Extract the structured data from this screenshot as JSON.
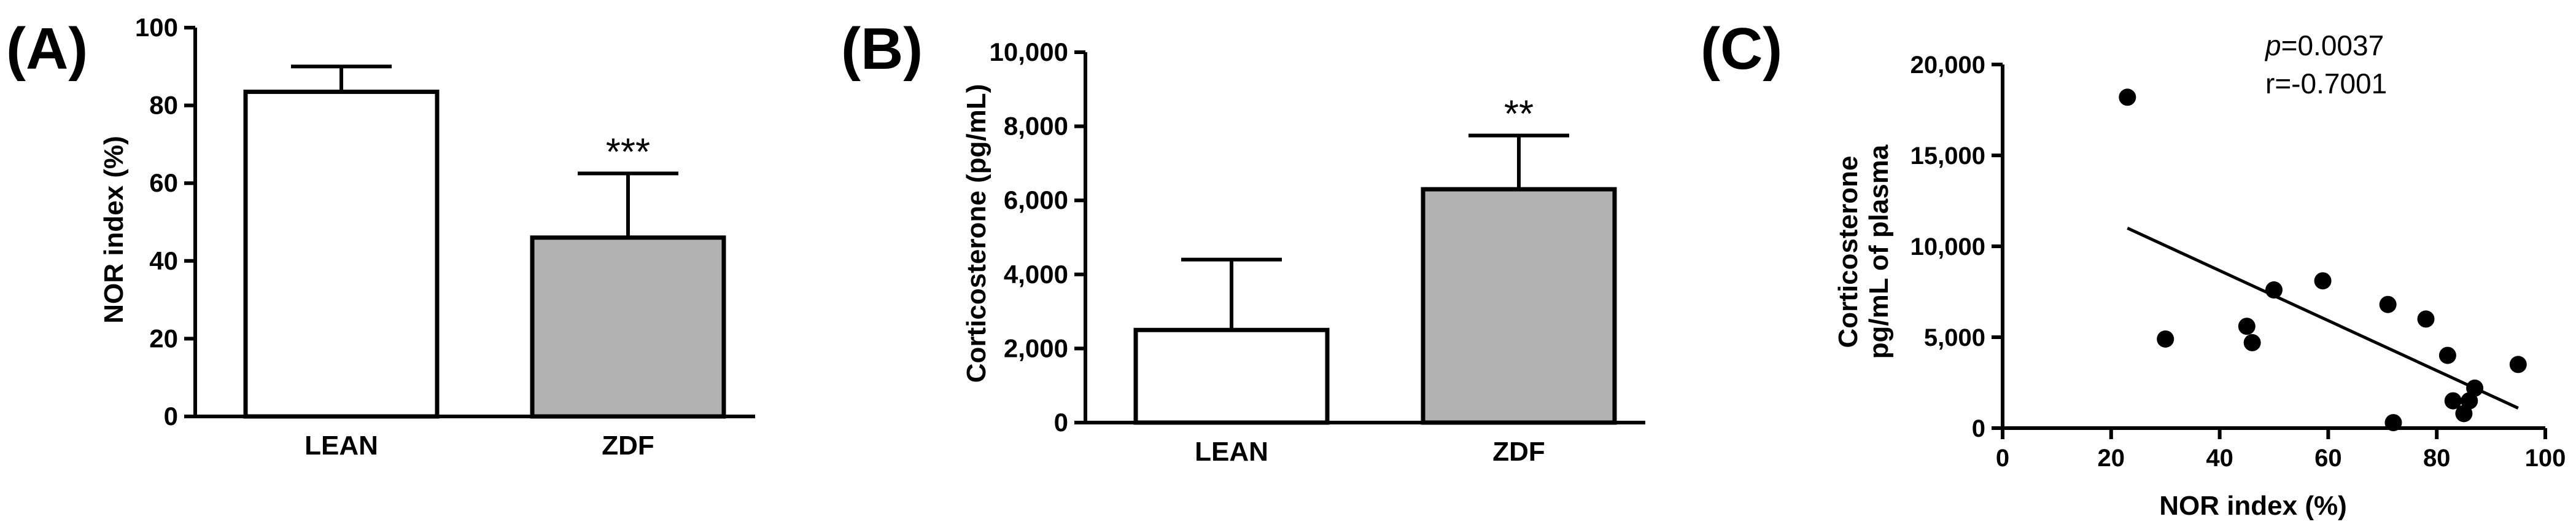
{
  "colors": {
    "axis": "#000000",
    "lean_fill": "#ffffff",
    "zdf_fill": "#b3b3b3",
    "point": "#000000"
  },
  "panels": [
    {
      "label": "(A)"
    },
    {
      "label": "(B)"
    },
    {
      "label": "(C)"
    }
  ],
  "chart_data": [
    {
      "type": "bar",
      "panel": "(A)",
      "categories": [
        "LEAN",
        "ZDF"
      ],
      "values": [
        83.5,
        46
      ],
      "error_upper": [
        90,
        62.5
      ],
      "significance": [
        "",
        "***"
      ],
      "ylabel": "NOR index (%)",
      "xlabel": "",
      "ylim": [
        0,
        100
      ],
      "yticks": [
        0,
        20,
        40,
        60,
        80,
        100
      ],
      "ytick_labels": [
        "0",
        "20",
        "40",
        "60",
        "80",
        "100"
      ]
    },
    {
      "type": "bar",
      "panel": "(B)",
      "categories": [
        "LEAN",
        "ZDF"
      ],
      "values": [
        2500,
        6300
      ],
      "error_upper": [
        4400,
        7750
      ],
      "significance": [
        "",
        "**"
      ],
      "ylabel": "Corticosterone (pg/mL)",
      "xlabel": "",
      "ylim": [
        0,
        10000
      ],
      "yticks": [
        0,
        2000,
        4000,
        6000,
        8000,
        10000
      ],
      "ytick_labels": [
        "0",
        "2,000",
        "4,000",
        "6,000",
        "8,000",
        "10,000"
      ]
    },
    {
      "type": "scatter",
      "panel": "(C)",
      "points": [
        {
          "x": 23,
          "y": 18200
        },
        {
          "x": 30,
          "y": 4900
        },
        {
          "x": 45,
          "y": 5600
        },
        {
          "x": 46,
          "y": 4700
        },
        {
          "x": 50,
          "y": 7600
        },
        {
          "x": 59,
          "y": 8100
        },
        {
          "x": 71,
          "y": 6800
        },
        {
          "x": 72,
          "y": 300
        },
        {
          "x": 78,
          "y": 6000
        },
        {
          "x": 82,
          "y": 4000
        },
        {
          "x": 83,
          "y": 1500
        },
        {
          "x": 85,
          "y": 800
        },
        {
          "x": 86,
          "y": 1500
        },
        {
          "x": 87,
          "y": 2200
        },
        {
          "x": 95,
          "y": 3500
        }
      ],
      "regression_line": {
        "x": [
          23,
          95
        ],
        "y": [
          11000,
          1100
        ]
      },
      "annotation_p_symbol": "p",
      "annotation_p_value": "=0.0037",
      "annotation_r": "r=-0.7001",
      "xlabel": "NOR index (%)",
      "ylabel_lines": [
        "Corticosterone",
        "pg/mL of plasma"
      ],
      "xlim": [
        0,
        100
      ],
      "ylim": [
        0,
        20000
      ],
      "xticks": [
        0,
        20,
        40,
        60,
        80,
        100
      ],
      "xtick_labels": [
        "0",
        "20",
        "40",
        "60",
        "80",
        "100"
      ],
      "yticks": [
        0,
        5000,
        10000,
        15000,
        20000
      ],
      "ytick_labels": [
        "0",
        "5,000",
        "10,000",
        "15,000",
        "20,000"
      ]
    }
  ]
}
